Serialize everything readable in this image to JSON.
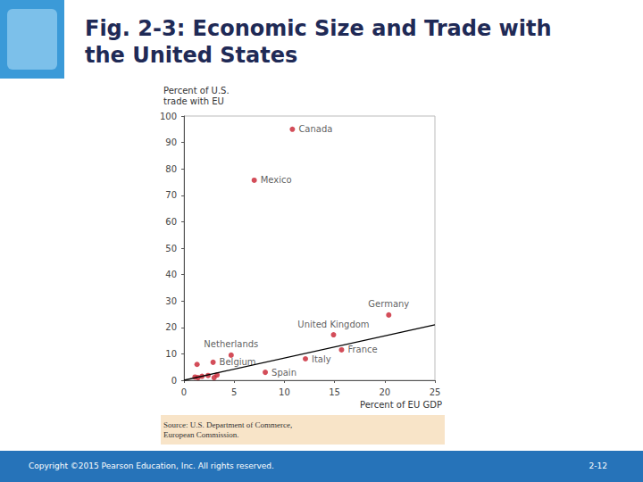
{
  "chart_data": {
    "type": "scatter",
    "title": "Fig. 2-3: Economic Size and Trade with the United States",
    "x_label": "Percent of EU GDP",
    "y_label": "Percent of U.S.\ntrade with EU",
    "source": "Source: U.S. Department of Commerce,\nEuropean Commission.",
    "xlim": [
      0,
      25
    ],
    "xticks": [
      0,
      5,
      10,
      15,
      20,
      25
    ],
    "ylim": [
      0,
      100
    ],
    "yticks": [
      0,
      10,
      20,
      30,
      40,
      50,
      60,
      70,
      80,
      90,
      100
    ],
    "grid": false,
    "series": [
      {
        "type": "scatter",
        "color": "#c8202f",
        "marker": "circle",
        "x": [
          10.8,
          7.0,
          20.4,
          14.9,
          15.7,
          12.1,
          8.1,
          4.7,
          2.9,
          1.3,
          1.1,
          1.4,
          1.8,
          2.4,
          3.0,
          3.3
        ],
        "values": [
          95,
          75.7,
          24.7,
          17.2,
          11.5,
          8.1,
          3.0,
          9.5,
          6.8,
          6.0,
          1.2,
          1.0,
          1.5,
          1.8,
          1.0,
          2.0
        ],
        "point_labels": [
          "Canada",
          "Mexico",
          "Germany",
          "United Kingdom",
          "France",
          "Italy",
          "Spain",
          "Netherlands",
          "Belgium",
          null,
          null,
          null,
          null,
          null,
          null,
          null
        ]
      },
      {
        "type": "line",
        "color": "#000000",
        "line_style": "solid",
        "x": [
          0,
          25
        ],
        "values": [
          0,
          21
        ]
      }
    ]
  },
  "slide": {
    "copyright": "Copyright ©2015 Pearson Education, Inc. All rights reserved.",
    "page": "2-12"
  }
}
